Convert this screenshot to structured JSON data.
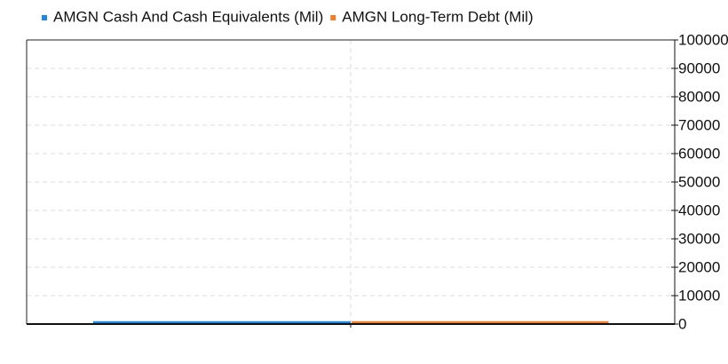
{
  "chart_data": {
    "type": "bar",
    "categories": [
      null,
      null
    ],
    "series": [
      {
        "name": "AMGN Cash And Cash Equivalents (Mil)",
        "color": "#1e88e5",
        "values": [
          1000,
          null
        ]
      },
      {
        "name": "AMGN Long-Term Debt (Mil)",
        "color": "#f07c2c",
        "values": [
          null,
          1000
        ]
      }
    ],
    "ylim": [
      0,
      100000
    ],
    "yticks": [
      0,
      10000,
      20000,
      30000,
      40000,
      50000,
      60000,
      70000,
      80000,
      90000,
      100000
    ],
    "y_axis_side": "right",
    "grid": true
  }
}
